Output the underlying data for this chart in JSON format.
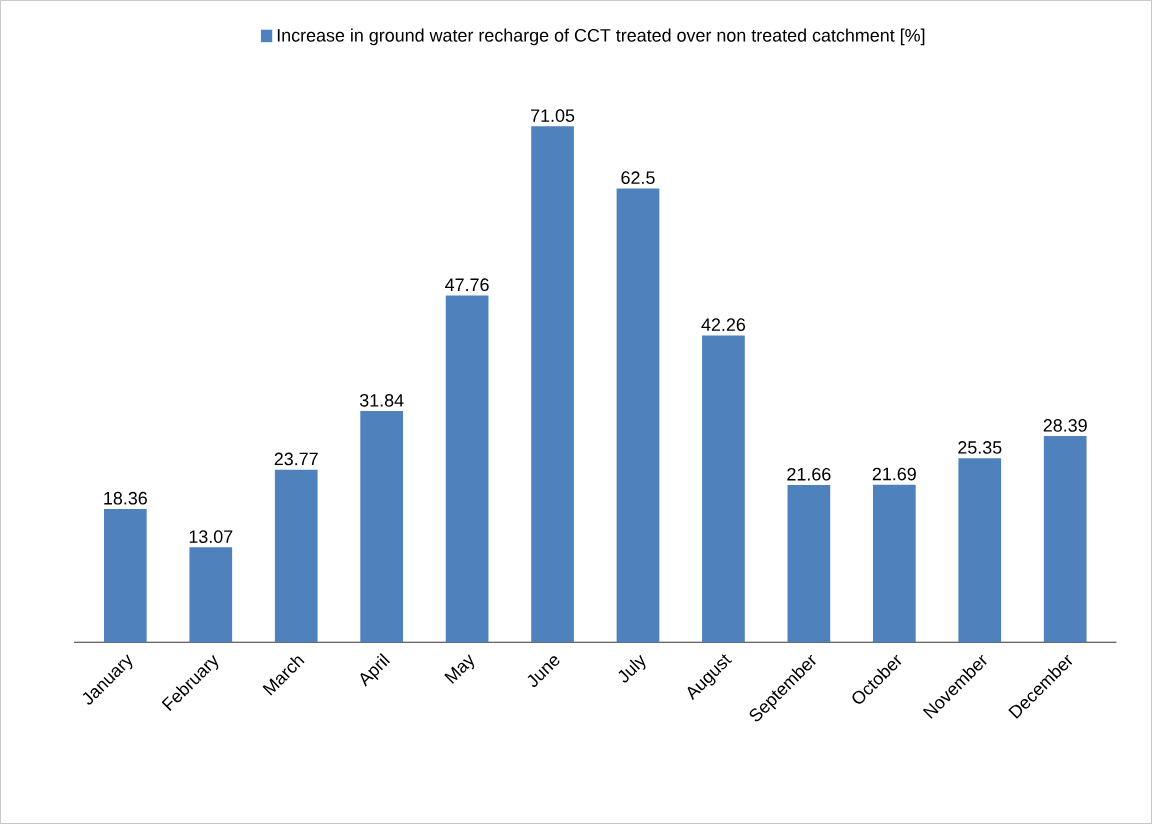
{
  "chart_data": {
    "type": "bar",
    "categories": [
      "January",
      "February",
      "March",
      "April",
      "May",
      "June",
      "July",
      "August",
      "September",
      "October",
      "November",
      "December"
    ],
    "series": [
      {
        "name": "Increase in ground water recharge of CCT treated over non treated catchment [%]",
        "color": "#4f81bd",
        "values": [
          18.36,
          13.07,
          23.77,
          31.84,
          47.76,
          71.05,
          62.5,
          42.26,
          21.66,
          21.69,
          25.35,
          28.39
        ]
      }
    ],
    "data_labels": true,
    "legend": "top",
    "tick_labels": "x"
  }
}
